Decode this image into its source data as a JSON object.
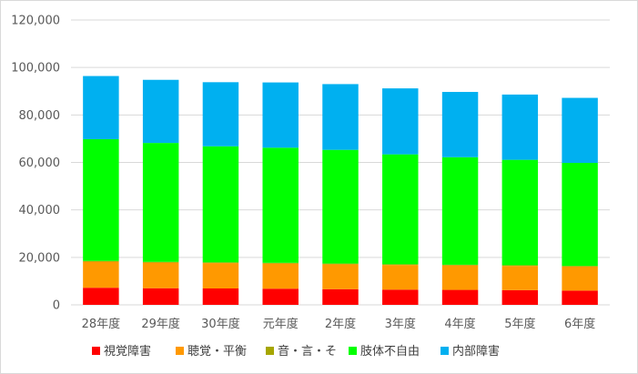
{
  "chart_data": {
    "type": "bar",
    "stacked": true,
    "title": "",
    "xlabel": "",
    "ylabel": "",
    "categories": [
      "28年度",
      "29年度",
      "30年度",
      "元年度",
      "2年度",
      "3年度",
      "4年度",
      "5年度",
      "6年度"
    ],
    "ylim": [
      0,
      120000
    ],
    "y_ticks": [
      "0",
      "20,000",
      "40,000",
      "60,000",
      "80,000",
      "100,000",
      "120,000"
    ],
    "grid": true,
    "legend_position": "bottom",
    "series": [
      {
        "name": "視覚障害",
        "color": "#ff0000",
        "values": [
          7200,
          7000,
          6900,
          6800,
          6600,
          6400,
          6300,
          6200,
          6000
        ]
      },
      {
        "name": "聴覚・平衡",
        "color": "#ff9900",
        "values": [
          11000,
          10800,
          10700,
          10600,
          10500,
          10400,
          10300,
          10200,
          10100
        ]
      },
      {
        "name": "音・言・そ",
        "color": "#a6a600",
        "values": [
          300,
          300,
          300,
          300,
          300,
          300,
          300,
          300,
          300
        ]
      },
      {
        "name": "肢体不自由",
        "color": "#00ff00",
        "values": [
          51300,
          50100,
          48900,
          48500,
          47900,
          46300,
          45300,
          44400,
          43400
        ]
      },
      {
        "name": "内部障害",
        "color": "#00b0f0",
        "values": [
          26600,
          26600,
          27000,
          27500,
          27700,
          27800,
          27500,
          27500,
          27400
        ]
      }
    ]
  }
}
